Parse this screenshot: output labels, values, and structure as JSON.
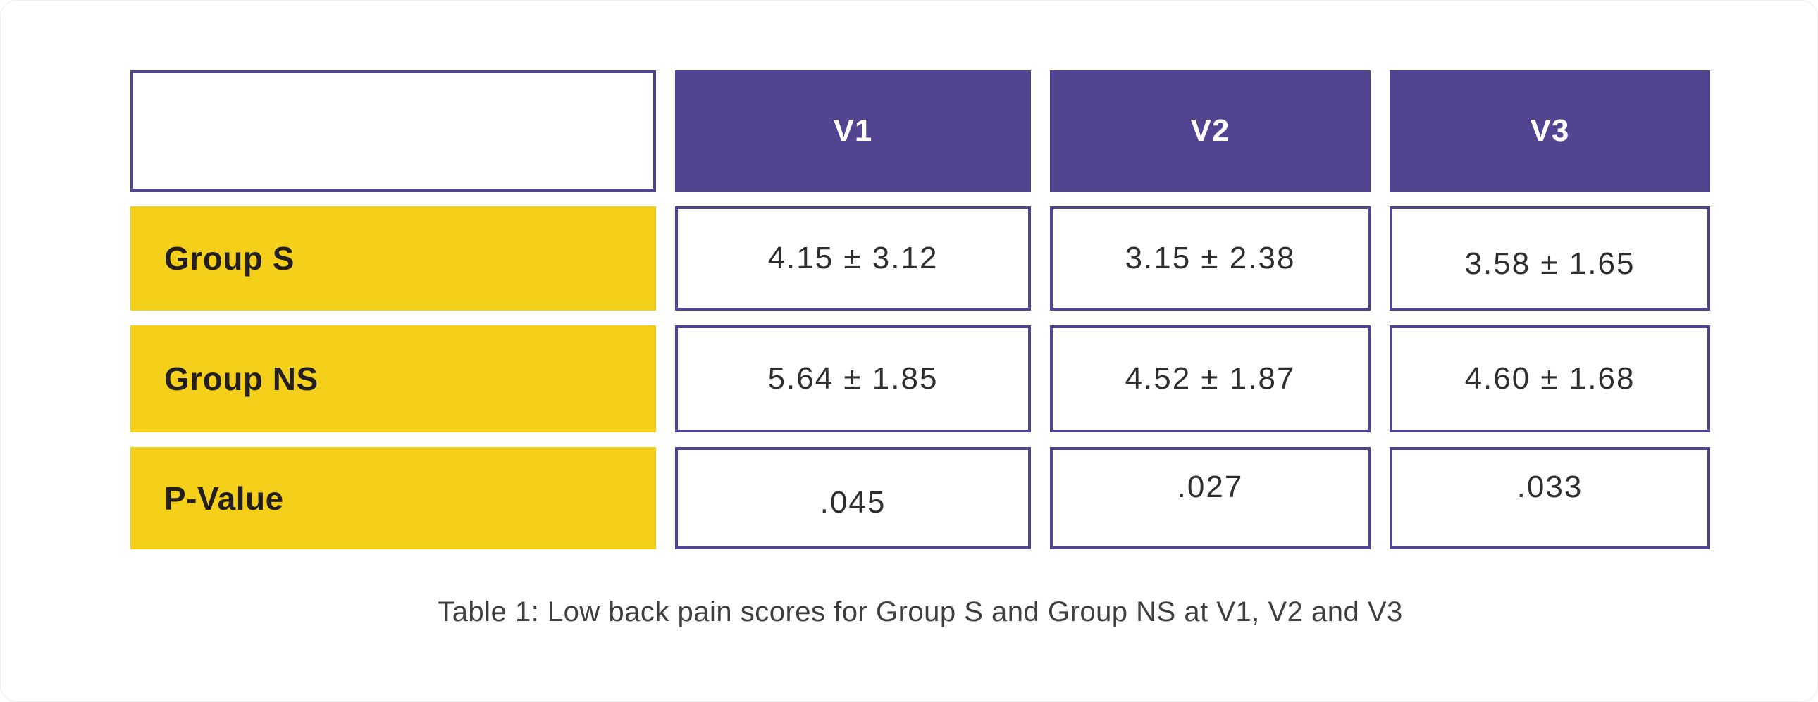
{
  "figure": {
    "caption": "Table 1: Low back pain scores for Group S and Group NS at V1, V2 and V3"
  },
  "table": {
    "corner": "",
    "columns": [
      "V1",
      "V2",
      "V3"
    ],
    "rows": [
      {
        "label": "Group S",
        "values": [
          "4.15 ± 3.12",
          "3.15 ± 2.38",
          "3.58 ± 1.65"
        ]
      },
      {
        "label": "Group NS",
        "values": [
          "5.64 ± 1.85",
          "4.52 ± 1.87",
          "4.60 ± 1.68"
        ]
      },
      {
        "label": "P-Value",
        "values": [
          ".045",
          ".027",
          ".033"
        ]
      }
    ]
  },
  "colors": {
    "header_purple": "#534492",
    "cell_border_purple": "#534492",
    "row_label_yellow": "#F4D01A",
    "header_text": "#FFFFFF",
    "value_text": "#2E2E2E",
    "label_text": "#231F20",
    "caption_text": "#3E3E3E",
    "background": "#FFFFFF"
  },
  "chart_data": {
    "type": "table",
    "title": "Table 1: Low back pain scores for Group S and Group NS at V1, V2 and V3",
    "columns": [
      "",
      "V1",
      "V2",
      "V3"
    ],
    "rows": [
      [
        "Group S",
        "4.15 ± 3.12",
        "3.15 ± 2.38",
        "3.58 ± 1.65"
      ],
      [
        "Group NS",
        "5.64 ± 1.85",
        "4.52 ± 1.87",
        "4.60 ± 1.68"
      ],
      [
        "P-Value",
        ".045",
        ".027",
        ".033"
      ]
    ],
    "x": [
      "V1",
      "V2",
      "V3"
    ],
    "series": [
      {
        "name": "Group S",
        "means": [
          4.15,
          3.15,
          3.58
        ],
        "sds": [
          3.12,
          2.38,
          1.65
        ]
      },
      {
        "name": "Group NS",
        "means": [
          5.64,
          4.52,
          4.6
        ],
        "sds": [
          1.85,
          1.87,
          1.68
        ]
      },
      {
        "name": "P-Value",
        "values": [
          0.045,
          0.027,
          0.033
        ]
      }
    ],
    "layout_hints": {
      "header_fill": "#534492",
      "row_label_fill": "#F4D01A",
      "value_cell_border": "#534492",
      "caption_position": "below-center"
    }
  }
}
